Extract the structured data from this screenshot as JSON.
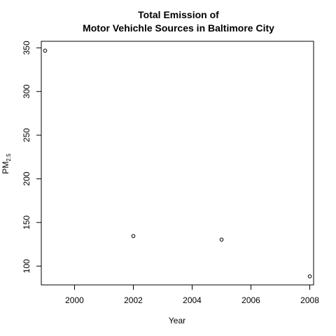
{
  "chart_data": {
    "type": "scatter",
    "title_line1": "Total Emission of",
    "title_line2": "Motor Vehichle Sources in Baltimore City",
    "xlabel": "Year",
    "ylabel_main": "PM",
    "ylabel_sub": "2.5",
    "x_ticks": [
      2000,
      2002,
      2004,
      2006,
      2008
    ],
    "x_tick_labels": [
      "2000",
      "2002",
      "2004",
      "2006",
      "2008"
    ],
    "y_ticks": [
      100,
      150,
      200,
      250,
      300,
      350
    ],
    "y_tick_labels": [
      "100",
      "150",
      "200",
      "250",
      "300",
      "350"
    ],
    "xlim": [
      1998.87,
      2008.13
    ],
    "ylim": [
      78.5,
      357.5
    ],
    "grid": false,
    "x": [
      1999,
      2002,
      2005,
      2008
    ],
    "y": [
      346.8,
      134.4,
      130.4,
      88.3
    ]
  }
}
